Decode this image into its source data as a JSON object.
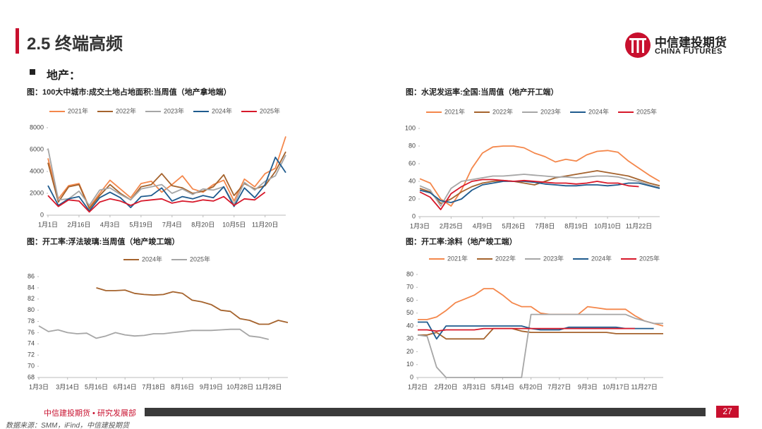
{
  "header": {
    "title": "2.5 终端高频",
    "logo_cn": "中信建投期货",
    "logo_en": "CHINA FUTURES"
  },
  "section": "地产：",
  "chart_data": [
    {
      "type": "line",
      "title": "图：100大中城市:成交土地占地面积:当周值（地产拿地端）",
      "categories": [
        "1月1日",
        null,
        null,
        "2月16日",
        null,
        null,
        "4月3日",
        null,
        null,
        "5月19日",
        null,
        null,
        "7月4日",
        null,
        null,
        "8月20日",
        null,
        null,
        "10月5日",
        null,
        null,
        "11月20日",
        null,
        null
      ],
      "ylim": [
        0,
        8000
      ],
      "yticks": [
        0,
        2000,
        4000,
        6000,
        8000
      ],
      "series": [
        {
          "name": "2021年",
          "color": "#f4874b",
          "values": [
            5200,
            1500,
            2700,
            2900,
            700,
            2000,
            3200,
            2400,
            1600,
            2900,
            3100,
            2100,
            2800,
            3600,
            2400,
            2100,
            2800,
            3200,
            1300,
            3300,
            2600,
            3800,
            4300,
            7200
          ]
        },
        {
          "name": "2022年",
          "color": "#a5632d",
          "values": [
            4800,
            1200,
            2600,
            2800,
            600,
            1800,
            2800,
            2000,
            1400,
            2600,
            2800,
            3800,
            2700,
            2500,
            2000,
            2200,
            2600,
            3700,
            1800,
            2900,
            2400,
            2700,
            4000,
            5800
          ]
        },
        {
          "name": "2023年",
          "color": "#a6a6a6",
          "values": [
            6100,
            1400,
            1500,
            2200,
            900,
            2300,
            2500,
            1900,
            1400,
            2400,
            2600,
            2800,
            2000,
            2400,
            1900,
            2400,
            2300,
            2600,
            1000,
            3000,
            2300,
            3100,
            3600,
            5500
          ]
        },
        {
          "name": "2024年",
          "color": "#1f5b8e",
          "values": [
            2700,
            900,
            1500,
            1700,
            400,
            1600,
            2100,
            1600,
            700,
            1700,
            1800,
            2500,
            1300,
            1700,
            1500,
            1800,
            1600,
            2600,
            800,
            2500,
            1600,
            2800,
            5300,
            3900
          ]
        },
        {
          "name": "2025年",
          "color": "#d7182a",
          "values": [
            1800,
            800,
            1400,
            1300,
            300,
            1200,
            1500,
            1300,
            900,
            1300,
            1400,
            1500,
            1100,
            1300,
            1200,
            1400,
            1300,
            1700,
            900,
            1500,
            1400,
            2100,
            null,
            null
          ]
        }
      ]
    },
    {
      "type": "line",
      "title": "图：水泥发运率:全国:当周值（地产开工端）",
      "categories": [
        "1月3日",
        null,
        null,
        "2月25日",
        null,
        null,
        "4月9日",
        null,
        null,
        "5月26日",
        null,
        null,
        "7月8日",
        null,
        null,
        "8月19日",
        null,
        null,
        "10月10日",
        null,
        null,
        "11月22日",
        null,
        null
      ],
      "ylim": [
        0,
        100
      ],
      "yticks": [
        0,
        20,
        40,
        60,
        80,
        100
      ],
      "series": [
        {
          "name": "2021年",
          "color": "#f4874b",
          "values": [
            43,
            38,
            20,
            12,
            30,
            55,
            72,
            79,
            80,
            80,
            78,
            72,
            68,
            62,
            65,
            63,
            70,
            74,
            75,
            73,
            63,
            55,
            47,
            40
          ]
        },
        {
          "name": "2022年",
          "color": "#a5632d",
          "values": [
            32,
            28,
            15,
            20,
            28,
            34,
            38,
            40,
            41,
            40,
            38,
            36,
            40,
            44,
            46,
            48,
            50,
            52,
            50,
            48,
            46,
            42,
            38,
            35
          ]
        },
        {
          "name": "2023年",
          "color": "#a6a6a6",
          "values": [
            35,
            30,
            12,
            32,
            40,
            42,
            44,
            46,
            46,
            47,
            48,
            47,
            46,
            45,
            45,
            44,
            45,
            46,
            46,
            45,
            42,
            40,
            36,
            33
          ]
        },
        {
          "name": "2024年",
          "color": "#1f5b8e",
          "values": [
            30,
            27,
            18,
            16,
            20,
            30,
            36,
            38,
            40,
            40,
            40,
            39,
            37,
            36,
            35,
            35,
            36,
            36,
            35,
            36,
            38,
            38,
            35,
            32
          ]
        },
        {
          "name": "2025年",
          "color": "#d7182a",
          "values": [
            28,
            22,
            8,
            26,
            34,
            40,
            42,
            42,
            41,
            40,
            41,
            40,
            39,
            38,
            38,
            37,
            38,
            40,
            38,
            38,
            35,
            34,
            null,
            null
          ]
        }
      ]
    },
    {
      "type": "line",
      "title": "图：开工率:浮法玻璃:当周值（地产竣工端）",
      "categories": [
        "1月3日",
        null,
        null,
        "3月14日",
        null,
        null,
        "5月16日",
        null,
        null,
        "6月14日",
        null,
        null,
        "7月18日",
        null,
        null,
        "8月16日",
        null,
        null,
        "9月19日",
        null,
        null,
        "10月28日",
        null,
        null,
        "11月28日",
        null,
        null
      ],
      "ylim": [
        68,
        86
      ],
      "yticks": [
        68,
        70,
        72,
        74,
        76,
        78,
        80,
        82,
        84,
        86
      ],
      "series": [
        {
          "name": "2024年",
          "color": "#a5632d",
          "values": [
            null,
            null,
            null,
            null,
            null,
            null,
            84,
            83.5,
            83.5,
            83.6,
            83,
            82.8,
            82.7,
            82.8,
            83.3,
            83,
            81.8,
            81.5,
            81,
            80,
            79.8,
            78.5,
            78.2,
            77.5,
            77.5,
            78.2,
            77.8
          ]
        },
        {
          "name": "2025年",
          "color": "#a6a6a6",
          "values": [
            77.2,
            76.2,
            76.5,
            76,
            75.8,
            75.9,
            75,
            75.4,
            76,
            75.6,
            75.4,
            75.5,
            75.8,
            75.8,
            76,
            76.2,
            76.4,
            76.4,
            76.4,
            76.5,
            76.6,
            76.6,
            75.4,
            75.2,
            74.8,
            null,
            null
          ]
        }
      ]
    },
    {
      "type": "line",
      "title": "图：开工率:涂料（地产竣工端）",
      "categories": [
        "1月2日",
        null,
        null,
        "2月20日",
        null,
        null,
        "3月31日",
        null,
        null,
        "5月14日",
        null,
        null,
        "6月20日",
        null,
        null,
        "7月27日",
        null,
        null,
        "9月3日",
        null,
        null,
        "10月17日",
        null,
        null,
        "11月27日",
        null,
        null
      ],
      "ylim": [
        0,
        80
      ],
      "yticks": [
        0,
        10,
        20,
        30,
        40,
        50,
        60,
        70,
        80
      ],
      "series": [
        {
          "name": "2021年",
          "color": "#f4874b",
          "values": [
            45,
            45,
            47,
            52,
            58,
            61,
            64,
            69,
            69,
            64,
            58,
            55,
            55,
            50,
            49,
            49,
            49,
            49,
            55,
            54,
            53,
            53,
            53,
            48,
            44,
            42,
            40
          ]
        },
        {
          "name": "2022年",
          "color": "#a5632d",
          "values": [
            33,
            33,
            35,
            30,
            30,
            30,
            30,
            30,
            38,
            38,
            38,
            36,
            35,
            35,
            35,
            35,
            35,
            35,
            35,
            35,
            35,
            34,
            34,
            34,
            34,
            34,
            34
          ]
        },
        {
          "name": "2023年",
          "color": "#a6a6a6",
          "values": [
            33,
            32,
            8,
            0,
            0,
            0,
            0,
            0,
            0,
            0,
            0,
            0,
            49,
            49,
            49,
            49,
            49,
            49,
            49,
            49,
            49,
            49,
            49,
            46,
            44,
            42,
            42
          ]
        },
        {
          "name": "2024年",
          "color": "#1f5b8e",
          "values": [
            43,
            43,
            30,
            40,
            40,
            40,
            40,
            40,
            40,
            40,
            40,
            40,
            38,
            37,
            37,
            37,
            39,
            39,
            39,
            39,
            39,
            39,
            38,
            38,
            38,
            38,
            null
          ]
        },
        {
          "name": "2025年",
          "color": "#d7182a",
          "values": [
            37,
            37,
            36,
            37,
            37,
            37,
            37,
            38,
            38,
            38,
            38,
            38,
            38,
            38,
            38,
            38,
            38,
            38,
            38,
            38,
            38,
            38,
            38,
            38,
            null,
            null,
            null
          ]
        }
      ]
    }
  ],
  "footer": {
    "org": "中信建投期货 • 研究发展部",
    "page": "27",
    "source": "数据来源：SMM，iFind，中信建投期货"
  }
}
